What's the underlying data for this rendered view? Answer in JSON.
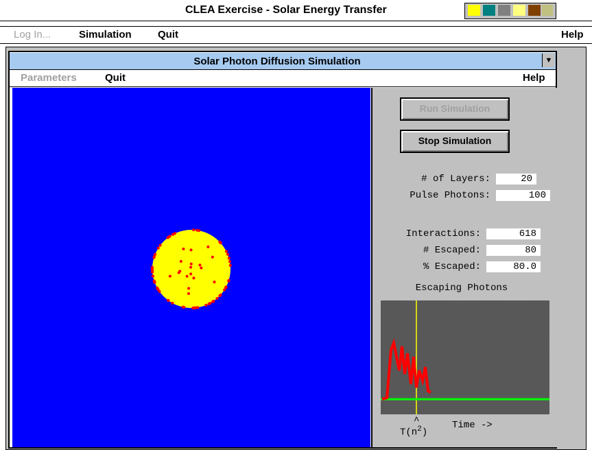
{
  "app": {
    "title": "CLEA Exercise - Solar Energy Transfer",
    "menu": [
      "Log In...",
      "Simulation",
      "Quit"
    ],
    "help": "Help"
  },
  "window": {
    "title": "Solar Photon Diffusion Simulation",
    "menu": [
      "Parameters",
      "Quit"
    ],
    "help": "Help",
    "buttons": [
      "Run Simulation",
      "Stop Simulation"
    ],
    "fields": [
      {
        "label": "# of Layers:",
        "value": "20"
      },
      {
        "label": "Pulse Photons:",
        "value": "100"
      },
      {
        "label": "Interactions:",
        "value": "618"
      },
      {
        "label": "# Escaped:",
        "value": "80"
      },
      {
        "label": "% Escaped:",
        "value": "80.0"
      }
    ],
    "graph": {
      "title": "Escaping Photons",
      "caret": "^",
      "y_label": "T(n",
      "exponent": "2",
      "y_label_close": ")",
      "x_label": "Time ->"
    }
  }
}
